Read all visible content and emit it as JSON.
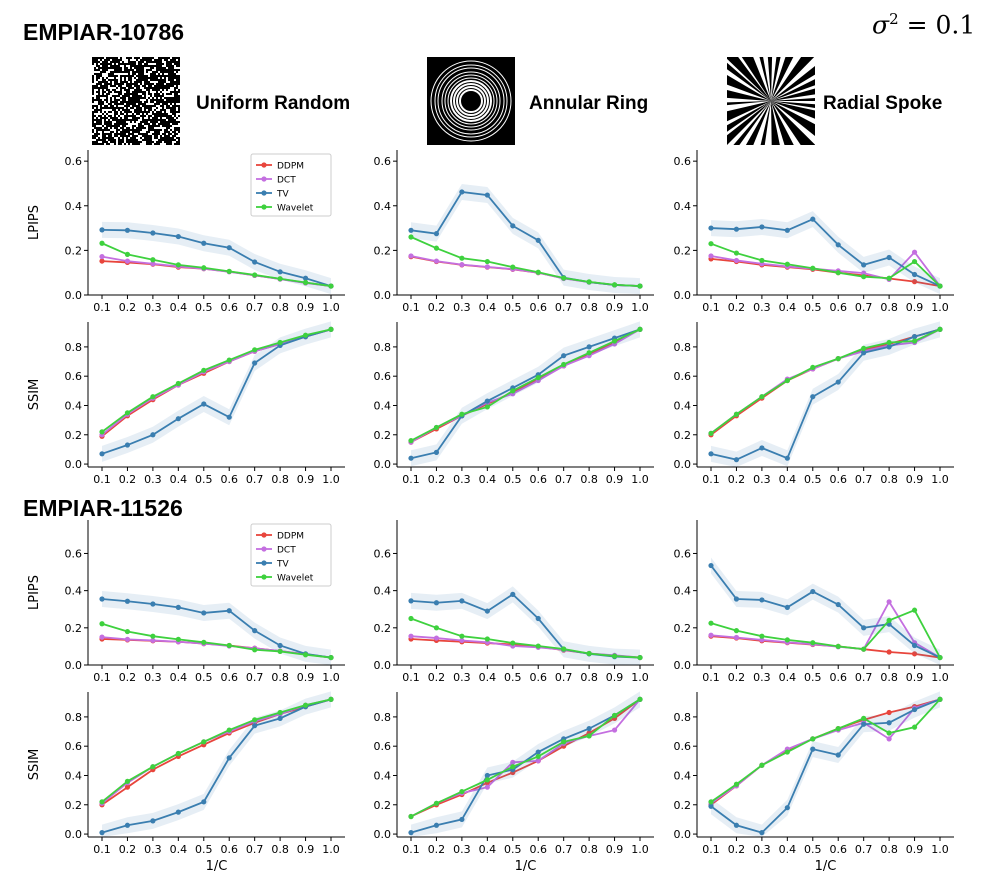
{
  "header": {
    "dataset_1": "EMPIAR-10786",
    "dataset_2": "EMPIAR-11526",
    "noise_prefix": "σ",
    "noise_exp": "2",
    "noise_value": " = 0.1"
  },
  "masks": [
    {
      "label": "Uniform Random"
    },
    {
      "label": "Annular Ring"
    },
    {
      "label": "Radial Spoke"
    }
  ],
  "colors": {
    "DDPM": "#e8453c",
    "DCT": "#c46fe0",
    "TV": "#3a7eb0",
    "Wavelet": "#3ed13e"
  },
  "chart_data": [
    {
      "type": "line",
      "dataset": "EMPIAR-10786",
      "mask": "Uniform Random",
      "ylabel": "LPIPS",
      "xlabel": "",
      "ylim": [
        0,
        0.65
      ],
      "yticks": [
        0.0,
        0.2,
        0.4,
        0.6
      ],
      "x": [
        0.1,
        0.2,
        0.3,
        0.4,
        0.5,
        0.6,
        0.7,
        0.8,
        0.9,
        1.0
      ],
      "legend": "top-right",
      "series": [
        {
          "name": "DDPM",
          "values": [
            0.152,
            0.146,
            0.138,
            0.125,
            0.118,
            0.105,
            0.088,
            0.072,
            0.055,
            0.04
          ]
        },
        {
          "name": "DCT",
          "values": [
            0.172,
            0.152,
            0.14,
            0.128,
            0.118,
            0.104,
            0.088,
            0.071,
            0.054,
            0.04
          ]
        },
        {
          "name": "TV",
          "values": [
            0.292,
            0.29,
            0.278,
            0.262,
            0.232,
            0.212,
            0.148,
            0.104,
            0.075,
            0.04
          ]
        },
        {
          "name": "Wavelet",
          "values": [
            0.232,
            0.182,
            0.158,
            0.135,
            0.122,
            0.106,
            0.09,
            0.073,
            0.056,
            0.04
          ]
        }
      ]
    },
    {
      "type": "line",
      "dataset": "EMPIAR-10786",
      "mask": "Annular Ring",
      "ylabel": "",
      "xlabel": "",
      "ylim": [
        0,
        0.65
      ],
      "yticks": [
        0.0,
        0.2,
        0.4,
        0.6
      ],
      "x": [
        0.1,
        0.2,
        0.3,
        0.4,
        0.5,
        0.6,
        0.7,
        0.8,
        0.9,
        1.0
      ],
      "series": [
        {
          "name": "DDPM",
          "values": [
            0.172,
            0.15,
            0.135,
            0.125,
            0.115,
            0.1,
            0.075,
            0.058,
            0.045,
            0.04
          ]
        },
        {
          "name": "DCT",
          "values": [
            0.175,
            0.152,
            0.136,
            0.126,
            0.116,
            0.1,
            0.074,
            0.058,
            0.045,
            0.04
          ]
        },
        {
          "name": "TV",
          "values": [
            0.29,
            0.275,
            0.462,
            0.448,
            0.31,
            0.245,
            0.078,
            0.058,
            0.045,
            0.04
          ]
        },
        {
          "name": "Wavelet",
          "values": [
            0.26,
            0.21,
            0.165,
            0.15,
            0.125,
            0.102,
            0.076,
            0.059,
            0.046,
            0.04
          ]
        }
      ]
    },
    {
      "type": "line",
      "dataset": "EMPIAR-10786",
      "mask": "Radial Spoke",
      "ylabel": "",
      "xlabel": "",
      "ylim": [
        0,
        0.65
      ],
      "yticks": [
        0.0,
        0.2,
        0.4,
        0.6
      ],
      "x": [
        0.1,
        0.2,
        0.3,
        0.4,
        0.5,
        0.6,
        0.7,
        0.8,
        0.9,
        1.0
      ],
      "series": [
        {
          "name": "DDPM",
          "values": [
            0.162,
            0.15,
            0.135,
            0.125,
            0.115,
            0.1,
            0.088,
            0.074,
            0.06,
            0.04
          ]
        },
        {
          "name": "DCT",
          "values": [
            0.175,
            0.155,
            0.14,
            0.128,
            0.118,
            0.108,
            0.098,
            0.07,
            0.192,
            0.04
          ]
        },
        {
          "name": "TV",
          "values": [
            0.3,
            0.295,
            0.305,
            0.29,
            0.34,
            0.225,
            0.135,
            0.168,
            0.092,
            0.04
          ]
        },
        {
          "name": "Wavelet",
          "values": [
            0.23,
            0.188,
            0.155,
            0.138,
            0.12,
            0.1,
            0.082,
            0.075,
            0.15,
            0.04
          ]
        }
      ]
    },
    {
      "type": "line",
      "dataset": "EMPIAR-10786",
      "mask": "Uniform Random",
      "ylabel": "SSIM",
      "xlabel": "",
      "ylim": [
        -0.02,
        0.97
      ],
      "yticks": [
        0.0,
        0.2,
        0.4,
        0.6,
        0.8
      ],
      "x": [
        0.1,
        0.2,
        0.3,
        0.4,
        0.5,
        0.6,
        0.7,
        0.8,
        0.9,
        1.0
      ],
      "series": [
        {
          "name": "DDPM",
          "values": [
            0.19,
            0.33,
            0.44,
            0.54,
            0.62,
            0.7,
            0.77,
            0.82,
            0.87,
            0.92
          ]
        },
        {
          "name": "DCT",
          "values": [
            0.2,
            0.34,
            0.45,
            0.54,
            0.63,
            0.7,
            0.77,
            0.82,
            0.87,
            0.92
          ]
        },
        {
          "name": "TV",
          "values": [
            0.07,
            0.13,
            0.2,
            0.31,
            0.41,
            0.32,
            0.69,
            0.81,
            0.87,
            0.92
          ]
        },
        {
          "name": "Wavelet",
          "values": [
            0.22,
            0.35,
            0.46,
            0.55,
            0.64,
            0.71,
            0.78,
            0.83,
            0.88,
            0.92
          ]
        }
      ]
    },
    {
      "type": "line",
      "dataset": "EMPIAR-10786",
      "mask": "Annular Ring",
      "ylabel": "",
      "xlabel": "",
      "ylim": [
        -0.02,
        0.97
      ],
      "yticks": [
        0.0,
        0.2,
        0.4,
        0.6,
        0.8
      ],
      "x": [
        0.1,
        0.2,
        0.3,
        0.4,
        0.5,
        0.6,
        0.7,
        0.8,
        0.9,
        1.0
      ],
      "series": [
        {
          "name": "DDPM",
          "values": [
            0.15,
            0.24,
            0.33,
            0.41,
            0.49,
            0.58,
            0.67,
            0.75,
            0.83,
            0.92
          ]
        },
        {
          "name": "DCT",
          "values": [
            0.15,
            0.25,
            0.33,
            0.42,
            0.48,
            0.57,
            0.67,
            0.74,
            0.82,
            0.92
          ]
        },
        {
          "name": "TV",
          "values": [
            0.04,
            0.08,
            0.33,
            0.43,
            0.52,
            0.61,
            0.74,
            0.8,
            0.86,
            0.92
          ]
        },
        {
          "name": "Wavelet",
          "values": [
            0.16,
            0.25,
            0.34,
            0.39,
            0.5,
            0.59,
            0.68,
            0.76,
            0.84,
            0.92
          ]
        }
      ]
    },
    {
      "type": "line",
      "dataset": "EMPIAR-10786",
      "mask": "Radial Spoke",
      "ylabel": "",
      "xlabel": "",
      "ylim": [
        -0.02,
        0.97
      ],
      "yticks": [
        0.0,
        0.2,
        0.4,
        0.6,
        0.8
      ],
      "x": [
        0.1,
        0.2,
        0.3,
        0.4,
        0.5,
        0.6,
        0.7,
        0.8,
        0.9,
        1.0
      ],
      "series": [
        {
          "name": "DDPM",
          "values": [
            0.2,
            0.33,
            0.45,
            0.57,
            0.65,
            0.72,
            0.78,
            0.82,
            0.87,
            0.92
          ]
        },
        {
          "name": "DCT",
          "values": [
            0.21,
            0.34,
            0.46,
            0.58,
            0.65,
            0.72,
            0.77,
            0.81,
            0.83,
            0.92
          ]
        },
        {
          "name": "TV",
          "values": [
            0.07,
            0.03,
            0.11,
            0.04,
            0.46,
            0.56,
            0.76,
            0.8,
            0.87,
            0.92
          ]
        },
        {
          "name": "Wavelet",
          "values": [
            0.21,
            0.34,
            0.46,
            0.57,
            0.66,
            0.72,
            0.79,
            0.83,
            0.84,
            0.92
          ]
        }
      ]
    },
    {
      "type": "line",
      "dataset": "EMPIAR-11526",
      "mask": "Uniform Random",
      "ylabel": "LPIPS",
      "xlabel": "",
      "ylim": [
        0,
        0.78
      ],
      "yticks": [
        0.0,
        0.2,
        0.4,
        0.6
      ],
      "x": [
        0.1,
        0.2,
        0.3,
        0.4,
        0.5,
        0.6,
        0.7,
        0.8,
        0.9,
        1.0
      ],
      "legend": "top-right",
      "series": [
        {
          "name": "DDPM",
          "values": [
            0.14,
            0.135,
            0.13,
            0.125,
            0.115,
            0.105,
            0.09,
            0.075,
            0.058,
            0.04
          ]
        },
        {
          "name": "DCT",
          "values": [
            0.15,
            0.138,
            0.132,
            0.125,
            0.115,
            0.102,
            0.09,
            0.075,
            0.058,
            0.04
          ]
        },
        {
          "name": "TV",
          "values": [
            0.355,
            0.343,
            0.328,
            0.31,
            0.28,
            0.292,
            0.185,
            0.105,
            0.06,
            0.04
          ]
        },
        {
          "name": "Wavelet",
          "values": [
            0.222,
            0.18,
            0.155,
            0.138,
            0.122,
            0.105,
            0.082,
            0.073,
            0.055,
            0.04
          ]
        }
      ]
    },
    {
      "type": "line",
      "dataset": "EMPIAR-11526",
      "mask": "Annular Ring",
      "ylabel": "",
      "xlabel": "",
      "ylim": [
        0,
        0.78
      ],
      "yticks": [
        0.0,
        0.2,
        0.4,
        0.6
      ],
      "x": [
        0.1,
        0.2,
        0.3,
        0.4,
        0.5,
        0.6,
        0.7,
        0.8,
        0.9,
        1.0
      ],
      "series": [
        {
          "name": "DDPM",
          "values": [
            0.14,
            0.132,
            0.125,
            0.118,
            0.11,
            0.098,
            0.08,
            0.062,
            0.05,
            0.04
          ]
        },
        {
          "name": "DCT",
          "values": [
            0.155,
            0.145,
            0.132,
            0.122,
            0.102,
            0.095,
            0.082,
            0.062,
            0.052,
            0.04
          ]
        },
        {
          "name": "TV",
          "values": [
            0.345,
            0.335,
            0.345,
            0.29,
            0.38,
            0.25,
            0.085,
            0.06,
            0.045,
            0.04
          ]
        },
        {
          "name": "Wavelet",
          "values": [
            0.25,
            0.2,
            0.155,
            0.14,
            0.118,
            0.102,
            0.086,
            0.062,
            0.048,
            0.04
          ]
        }
      ]
    },
    {
      "type": "line",
      "dataset": "EMPIAR-11526",
      "mask": "Radial Spoke",
      "ylabel": "",
      "xlabel": "",
      "ylim": [
        0,
        0.78
      ],
      "yticks": [
        0.0,
        0.2,
        0.4,
        0.6
      ],
      "x": [
        0.1,
        0.2,
        0.3,
        0.4,
        0.5,
        0.6,
        0.7,
        0.8,
        0.9,
        1.0
      ],
      "series": [
        {
          "name": "DDPM",
          "values": [
            0.155,
            0.145,
            0.13,
            0.12,
            0.11,
            0.1,
            0.085,
            0.07,
            0.06,
            0.04
          ]
        },
        {
          "name": "DCT",
          "values": [
            0.16,
            0.148,
            0.135,
            0.122,
            0.112,
            0.098,
            0.085,
            0.34,
            0.12,
            0.04
          ]
        },
        {
          "name": "TV",
          "values": [
            0.535,
            0.355,
            0.35,
            0.31,
            0.395,
            0.325,
            0.2,
            0.22,
            0.105,
            0.04
          ]
        },
        {
          "name": "Wavelet",
          "values": [
            0.225,
            0.185,
            0.155,
            0.135,
            0.12,
            0.1,
            0.085,
            0.24,
            0.295,
            0.04
          ]
        }
      ]
    },
    {
      "type": "line",
      "dataset": "EMPIAR-11526",
      "mask": "Uniform Random",
      "ylabel": "SSIM",
      "xlabel": "1/C",
      "ylim": [
        -0.02,
        0.97
      ],
      "yticks": [
        0.0,
        0.2,
        0.4,
        0.6,
        0.8
      ],
      "x": [
        0.1,
        0.2,
        0.3,
        0.4,
        0.5,
        0.6,
        0.7,
        0.8,
        0.9,
        1.0
      ],
      "series": [
        {
          "name": "DDPM",
          "values": [
            0.2,
            0.32,
            0.44,
            0.53,
            0.61,
            0.69,
            0.76,
            0.82,
            0.87,
            0.92
          ]
        },
        {
          "name": "DCT",
          "values": [
            0.21,
            0.35,
            0.46,
            0.55,
            0.63,
            0.7,
            0.77,
            0.82,
            0.88,
            0.92
          ]
        },
        {
          "name": "TV",
          "values": [
            0.01,
            0.06,
            0.09,
            0.15,
            0.22,
            0.52,
            0.74,
            0.79,
            0.87,
            0.92
          ]
        },
        {
          "name": "Wavelet",
          "values": [
            0.22,
            0.36,
            0.46,
            0.55,
            0.63,
            0.71,
            0.78,
            0.83,
            0.88,
            0.92
          ]
        }
      ]
    },
    {
      "type": "line",
      "dataset": "EMPIAR-11526",
      "mask": "Annular Ring",
      "ylabel": "",
      "xlabel": "1/C",
      "ylim": [
        -0.02,
        0.97
      ],
      "yticks": [
        0.0,
        0.2,
        0.4,
        0.6,
        0.8
      ],
      "x": [
        0.1,
        0.2,
        0.3,
        0.4,
        0.5,
        0.6,
        0.7,
        0.8,
        0.9,
        1.0
      ],
      "series": [
        {
          "name": "DDPM",
          "values": [
            0.12,
            0.2,
            0.27,
            0.35,
            0.42,
            0.5,
            0.6,
            0.69,
            0.79,
            0.92
          ]
        },
        {
          "name": "DCT",
          "values": [
            0.12,
            0.21,
            0.28,
            0.32,
            0.49,
            0.5,
            0.62,
            0.67,
            0.71,
            0.92
          ]
        },
        {
          "name": "TV",
          "values": [
            0.01,
            0.06,
            0.1,
            0.4,
            0.44,
            0.56,
            0.65,
            0.72,
            0.81,
            0.92
          ]
        },
        {
          "name": "Wavelet",
          "values": [
            0.12,
            0.21,
            0.29,
            0.37,
            0.46,
            0.53,
            0.63,
            0.67,
            0.81,
            0.92
          ]
        }
      ]
    },
    {
      "type": "line",
      "dataset": "EMPIAR-11526",
      "mask": "Radial Spoke",
      "ylabel": "",
      "xlabel": "1/C",
      "ylim": [
        -0.02,
        0.97
      ],
      "yticks": [
        0.0,
        0.2,
        0.4,
        0.6,
        0.8
      ],
      "x": [
        0.1,
        0.2,
        0.3,
        0.4,
        0.5,
        0.6,
        0.7,
        0.8,
        0.9,
        1.0
      ],
      "series": [
        {
          "name": "DDPM",
          "values": [
            0.2,
            0.33,
            0.47,
            0.57,
            0.65,
            0.72,
            0.78,
            0.83,
            0.87,
            0.92
          ]
        },
        {
          "name": "DCT",
          "values": [
            0.21,
            0.33,
            0.47,
            0.58,
            0.65,
            0.71,
            0.76,
            0.65,
            0.86,
            0.92
          ]
        },
        {
          "name": "TV",
          "values": [
            0.19,
            0.06,
            0.01,
            0.18,
            0.58,
            0.54,
            0.75,
            0.76,
            0.85,
            0.92
          ]
        },
        {
          "name": "Wavelet",
          "values": [
            0.22,
            0.34,
            0.47,
            0.56,
            0.65,
            0.72,
            0.79,
            0.69,
            0.73,
            0.92
          ]
        }
      ]
    }
  ]
}
